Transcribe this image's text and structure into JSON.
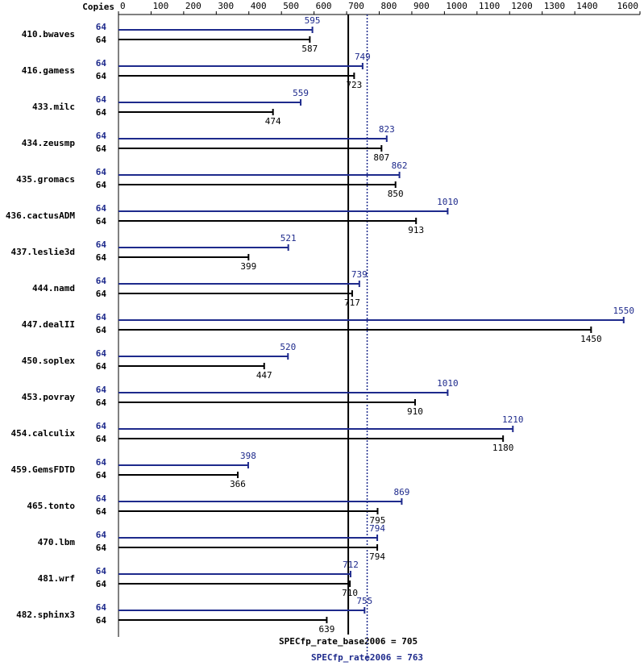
{
  "chart_data": {
    "type": "bar",
    "orientation": "horizontal",
    "copies_label": "Copies",
    "categories": [
      "410.bwaves",
      "416.gamess",
      "433.milc",
      "434.zeusmp",
      "435.gromacs",
      "436.cactusADM",
      "437.leslie3d",
      "444.namd",
      "447.dealII",
      "450.soplex",
      "453.povray",
      "454.calculix",
      "459.GemsFDTD",
      "465.tonto",
      "470.lbm",
      "481.wrf",
      "482.sphinx3"
    ],
    "series": [
      {
        "name": "SPECfp_rate2006",
        "color": "#1e2a8c",
        "copies": [
          64,
          64,
          64,
          64,
          64,
          64,
          64,
          64,
          64,
          64,
          64,
          64,
          64,
          64,
          64,
          64,
          64
        ],
        "values": [
          595,
          749,
          559,
          823,
          862,
          1010,
          521,
          739,
          1550,
          520,
          1010,
          1210,
          398,
          869,
          794,
          712,
          755
        ]
      },
      {
        "name": "SPECfp_rate_base2006",
        "color": "#000000",
        "copies": [
          64,
          64,
          64,
          64,
          64,
          64,
          64,
          64,
          64,
          64,
          64,
          64,
          64,
          64,
          64,
          64,
          64
        ],
        "values": [
          587,
          723,
          474,
          807,
          850,
          913,
          399,
          717,
          1450,
          447,
          910,
          1180,
          366,
          795,
          794,
          710,
          639
        ]
      }
    ],
    "xlim": [
      0,
      1600
    ],
    "xticks": [
      0,
      100,
      200,
      300,
      400,
      500,
      600,
      700,
      800,
      900,
      1000,
      1100,
      1200,
      1300,
      1400,
      1600
    ],
    "reference_lines": [
      {
        "value": 705,
        "label": "SPECfp_rate_base2006 = 705",
        "color": "#000000",
        "style": "solid"
      },
      {
        "value": 763,
        "label": "SPECfp_rate2006 = 763",
        "color": "#1e2a8c",
        "style": "dotted"
      }
    ]
  }
}
